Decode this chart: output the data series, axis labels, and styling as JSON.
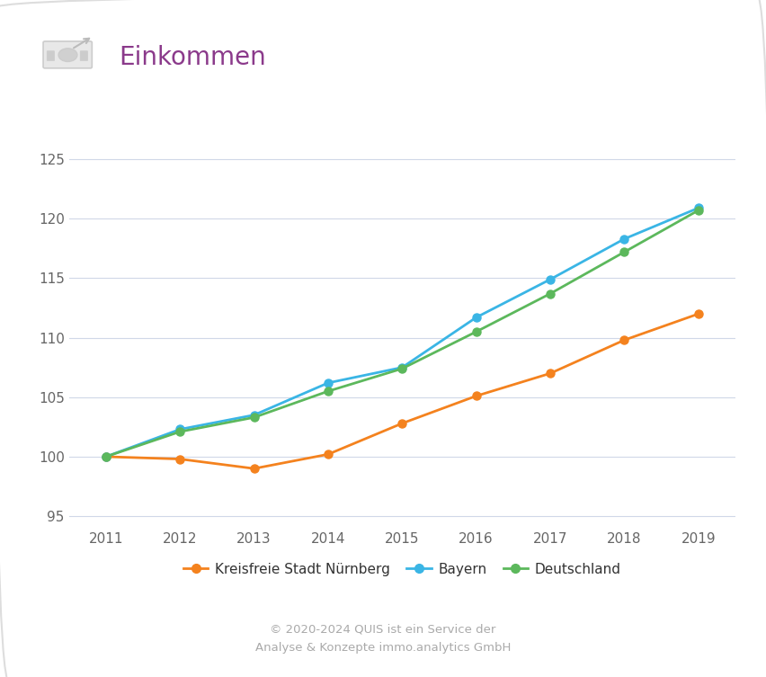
{
  "title": "Einkommen",
  "years": [
    2011,
    2012,
    2013,
    2014,
    2015,
    2016,
    2017,
    2018,
    2019
  ],
  "nuernberg": [
    100.0,
    99.8,
    99.0,
    100.2,
    102.8,
    105.1,
    107.0,
    109.8,
    112.0
  ],
  "bayern": [
    100.0,
    102.3,
    103.5,
    106.2,
    107.5,
    111.7,
    114.9,
    118.3,
    120.9
  ],
  "deutschland": [
    100.0,
    102.1,
    103.3,
    105.5,
    107.4,
    110.5,
    113.7,
    117.2,
    120.7
  ],
  "nuernberg_color": "#f4821e",
  "bayern_color": "#3ab5e5",
  "deutschland_color": "#5cb85c",
  "ylim": [
    94,
    127
  ],
  "yticks": [
    95,
    100,
    105,
    110,
    115,
    120,
    125
  ],
  "background_color": "#ffffff",
  "grid_color": "#d0d8e8",
  "title_color": "#8b3a8b",
  "title_fontsize": 20,
  "axis_fontsize": 11,
  "legend_fontsize": 11,
  "footer_text": "© 2020-2024 QUIS ist ein Service der\nAnalyse & Konzepte immo.analytics GmbH",
  "legend_labels": [
    "Kreisfreie Stadt Nürnberg",
    "Bayern",
    "Deutschland"
  ],
  "icon_color": "#cccccc"
}
